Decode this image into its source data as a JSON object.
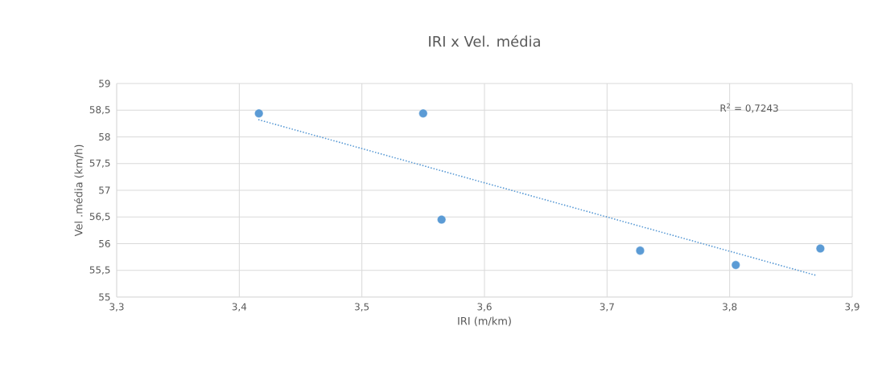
{
  "chart_data": {
    "type": "scatter",
    "title": "IRI x Vel. média",
    "xlabel": "IRI (m/km)",
    "ylabel": "Vel .média (km/h)",
    "xlim": [
      3.3,
      3.9
    ],
    "xticks": [
      {
        "value": 3.3,
        "label": "3,3"
      },
      {
        "value": 3.4,
        "label": "3,4"
      },
      {
        "value": 3.5,
        "label": "3,5"
      },
      {
        "value": 3.6,
        "label": "3,6"
      },
      {
        "value": 3.7,
        "label": "3,7"
      },
      {
        "value": 3.8,
        "label": "3,8"
      },
      {
        "value": 3.9,
        "label": "3,9"
      }
    ],
    "ylim": [
      55,
      59
    ],
    "yticks": [
      55,
      {
        "value": 55.5,
        "label": "55,5"
      },
      56,
      {
        "value": 56.5,
        "label": "56,5"
      },
      57,
      {
        "value": 57.5,
        "label": "57,5"
      },
      58,
      {
        "value": 58.5,
        "label": "58,5"
      },
      59
    ],
    "grid": true,
    "marker": "circle",
    "series": [
      {
        "color": "#5b9bd5",
        "x": [
          3.416,
          3.55,
          3.565,
          3.727,
          3.805,
          3.874
        ],
        "values": [
          58.44,
          58.44,
          56.45,
          55.87,
          55.6,
          55.91
        ]
      },
      {
        "type": "line",
        "line_style": "dotted",
        "marker": "none",
        "color": "#5b9bd5",
        "x": [
          3.416,
          3.87
        ],
        "values": [
          58.32,
          55.41
        ]
      }
    ],
    "annotations": [
      "R$^{2}$ = 0,7243"
    ]
  }
}
